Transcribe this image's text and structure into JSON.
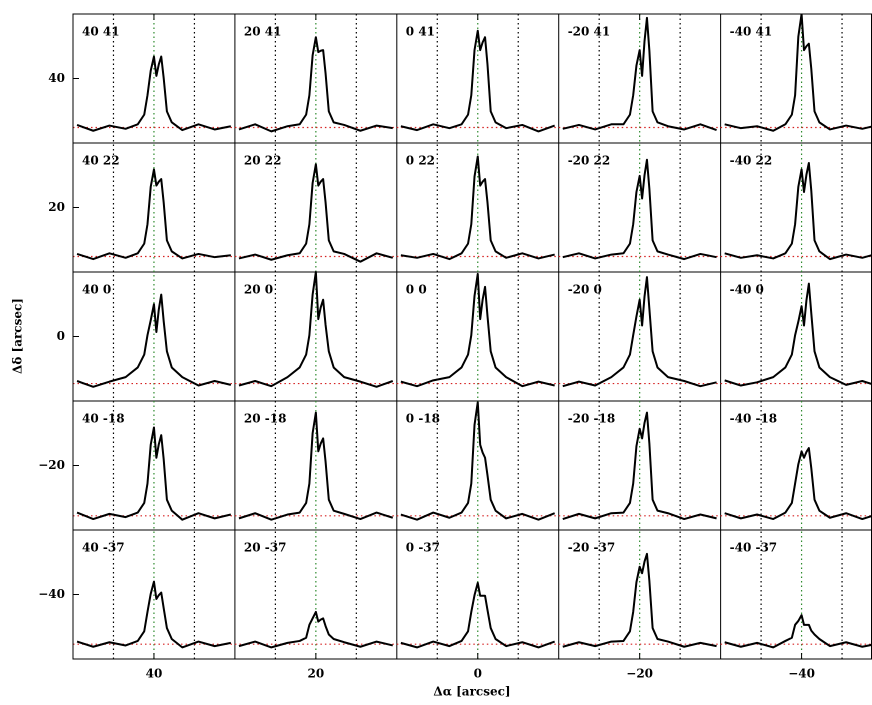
{
  "chart_data": {
    "type": "spectra-grid",
    "xlabel": "Δα [arcsec]",
    "ylabel": "Δδ [arcsec]",
    "xlim": [
      50,
      -48.7
    ],
    "ylim": [
      -50,
      50
    ],
    "xticks": [
      40,
      20,
      0,
      {
        "value": -20,
        "label": "−20"
      },
      {
        "value": -40,
        "label": "−40"
      }
    ],
    "yticks": [
      40,
      20,
      0,
      {
        "value": -20,
        "label": "−20"
      },
      {
        "value": -40,
        "label": "−40"
      }
    ],
    "line_color": "#000000",
    "center_color": "#2e8b2e",
    "marker_color": "#000000",
    "baseline_color": "#d62020",
    "columns": [
      {
        "center": 40,
        "lines": [
          45,
          35
        ],
        "x": [
          49.5,
          47.5,
          45.5,
          43.5,
          42,
          41.2,
          40.8,
          40.4,
          40,
          39.7,
          39.4,
          39.1,
          38.8,
          38.4,
          37.8,
          36.5,
          34.5,
          32.5,
          30.5
        ]
      },
      {
        "center": 20,
        "lines": [
          25,
          15
        ],
        "x": [
          29.5,
          27.5,
          25.5,
          23.5,
          22,
          21.2,
          20.8,
          20.4,
          20,
          19.7,
          19.4,
          19.1,
          18.8,
          18.4,
          17.8,
          16.5,
          14.5,
          12.5,
          10.5
        ]
      },
      {
        "center": 0,
        "lines": [
          5,
          -5
        ],
        "x": [
          9.5,
          7.5,
          5.5,
          3.5,
          2,
          1.2,
          0.8,
          0.4,
          0,
          -0.3,
          -0.6,
          -0.9,
          -1.2,
          -1.6,
          -2.2,
          -3.5,
          -5.5,
          -7.5,
          -9.5
        ]
      },
      {
        "center": -20,
        "lines": [
          -15,
          -25
        ],
        "x": [
          -10.5,
          -12.5,
          -14.5,
          -16.5,
          -18,
          -18.8,
          -19.2,
          -19.6,
          -20,
          -20.3,
          -20.6,
          -20.9,
          -21.2,
          -21.6,
          -22.2,
          -23.5,
          -25.5,
          -27.5,
          -29.5
        ]
      },
      {
        "center": -40,
        "lines": [
          -35,
          -45
        ],
        "x": [
          -30.5,
          -32.5,
          -34.5,
          -36.5,
          -38,
          -38.8,
          -39.2,
          -39.6,
          -40,
          -40.3,
          -40.6,
          -40.9,
          -41.2,
          -41.6,
          -42.2,
          -43.5,
          -45.5,
          -47.5,
          -49.5
        ]
      }
    ],
    "rows": [
      {
        "baseline": 32.4
      },
      {
        "baseline": 12.4
      },
      {
        "baseline": -7.3
      },
      {
        "baseline": -27.8
      },
      {
        "baseline": -47.7
      }
    ],
    "panels": [
      {
        "label": "40 41",
        "values": [
          32.8,
          31.9,
          32.7,
          32.2,
          32.9,
          34.4,
          37.4,
          41.2,
          43.4,
          40.4,
          42.2,
          43.4,
          40.1,
          34.9,
          33.2,
          32.0,
          32.9,
          32.1,
          32.6
        ]
      },
      {
        "label": "20 41",
        "values": [
          32.1,
          32.9,
          31.8,
          32.6,
          32.9,
          34.4,
          37.4,
          43.6,
          46.4,
          44.1,
          44.3,
          44.4,
          40.8,
          34.9,
          33.2,
          32.8,
          31.9,
          32.7,
          32.3
        ]
      },
      {
        "label": "0 41",
        "values": [
          32.6,
          32.0,
          32.9,
          32.3,
          32.9,
          34.4,
          37.4,
          44.4,
          47.4,
          44.4,
          45.6,
          46.4,
          42.2,
          34.9,
          33.2,
          32.3,
          32.8,
          31.8,
          32.7
        ]
      },
      {
        "label": "-20 41",
        "values": [
          32.2,
          32.8,
          32.1,
          32.9,
          32.9,
          34.4,
          37.4,
          42.0,
          44.4,
          40.4,
          45.8,
          49.4,
          44.3,
          34.9,
          33.2,
          32.6,
          32.1,
          32.9,
          32.0
        ]
      },
      {
        "label": "-40 41",
        "values": [
          32.9,
          32.3,
          32.6,
          31.9,
          32.9,
          34.4,
          37.4,
          46.5,
          50.0,
          44.4,
          45.0,
          45.4,
          41.5,
          34.9,
          33.2,
          32.1,
          32.7,
          32.2,
          32.8
        ]
      },
      {
        "label": "40 22",
        "values": [
          12.8,
          12.0,
          12.9,
          12.2,
          12.9,
          14.4,
          17.4,
          23.2,
          25.9,
          23.4,
          24.0,
          24.4,
          20.8,
          14.9,
          13.2,
          12.1,
          12.8,
          12.3,
          12.6
        ]
      },
      {
        "label": "20 22",
        "values": [
          12.1,
          12.7,
          11.9,
          12.6,
          12.9,
          14.4,
          17.4,
          23.8,
          26.7,
          23.4,
          24.0,
          24.4,
          20.8,
          14.9,
          13.2,
          12.8,
          11.6,
          12.9,
          12.2
        ]
      },
      {
        "label": "0 22",
        "values": [
          12.6,
          12.2,
          12.8,
          12.0,
          12.9,
          14.4,
          17.4,
          24.8,
          27.9,
          23.4,
          24.0,
          24.4,
          20.8,
          14.9,
          13.2,
          12.2,
          12.9,
          12.1,
          12.7
        ]
      },
      {
        "label": "-20 22",
        "values": [
          12.3,
          12.9,
          12.1,
          12.7,
          12.9,
          14.4,
          17.4,
          22.4,
          24.9,
          21.4,
          25.0,
          27.4,
          22.9,
          14.9,
          13.2,
          12.7,
          12.0,
          12.8,
          12.3
        ]
      },
      {
        "label": "-40 22",
        "values": [
          12.9,
          12.2,
          12.6,
          12.1,
          12.9,
          14.4,
          17.4,
          23.2,
          25.9,
          22.4,
          25.1,
          26.9,
          22.6,
          14.9,
          13.2,
          12.0,
          12.7,
          12.2,
          12.9
        ]
      },
      {
        "label": "40 0",
        "values": [
          -6.9,
          -7.8,
          -7.0,
          -6.3,
          -4.8,
          -2.8,
          0.2,
          2.5,
          5.0,
          0.7,
          4.2,
          6.5,
          2.4,
          -2.3,
          -4.8,
          -6.3,
          -7.6,
          -6.9,
          -7.5
        ]
      },
      {
        "label": "20 0",
        "values": [
          -7.6,
          -6.9,
          -7.7,
          -6.3,
          -4.8,
          -2.8,
          0.2,
          6.5,
          10.0,
          2.7,
          4.5,
          5.7,
          1.8,
          -2.3,
          -4.8,
          -6.3,
          -7.0,
          -7.8,
          -6.9
        ]
      },
      {
        "label": "0 0",
        "values": [
          -7.0,
          -7.7,
          -6.8,
          -6.3,
          -4.8,
          -2.8,
          0.2,
          6.3,
          9.7,
          2.7,
          5.7,
          7.7,
          3.2,
          -2.3,
          -4.8,
          -6.3,
          -7.7,
          -7.0,
          -7.6
        ]
      },
      {
        "label": "-20 0",
        "values": [
          -7.7,
          -7.0,
          -7.6,
          -6.3,
          -4.8,
          -2.8,
          0.2,
          3.1,
          5.7,
          1.7,
          6.2,
          9.2,
          4.3,
          -2.3,
          -4.8,
          -6.3,
          -6.9,
          -7.7,
          -7.1
        ]
      },
      {
        "label": "-40 0",
        "values": [
          -6.8,
          -7.6,
          -7.1,
          -6.3,
          -4.8,
          -2.8,
          0.2,
          2.3,
          4.7,
          1.7,
          5.6,
          8.2,
          3.6,
          -2.3,
          -4.8,
          -6.3,
          -7.5,
          -6.9,
          -7.7
        ]
      },
      {
        "label": "40 -18",
        "values": [
          -27.3,
          -28.3,
          -27.5,
          -28.0,
          -27.3,
          -25.8,
          -22.8,
          -16.8,
          -14.1,
          -18.8,
          -16.7,
          -15.3,
          -19.0,
          -25.3,
          -27.0,
          -28.4,
          -27.4,
          -28.2,
          -27.6
        ]
      },
      {
        "label": "20 -18",
        "values": [
          -28.2,
          -27.4,
          -28.4,
          -27.6,
          -27.3,
          -25.8,
          -22.8,
          -15.0,
          -11.8,
          -17.8,
          -16.6,
          -15.8,
          -19.4,
          -25.3,
          -27.0,
          -27.5,
          -28.3,
          -27.3,
          -28.1
        ]
      },
      {
        "label": "0 -18",
        "values": [
          -27.6,
          -28.4,
          -27.3,
          -28.1,
          -27.3,
          -25.8,
          -22.8,
          -13.7,
          -10.2,
          -16.8,
          -18.0,
          -18.8,
          -21.5,
          -25.3,
          -27.0,
          -28.2,
          -27.5,
          -28.4,
          -27.4
        ]
      },
      {
        "label": "-20 -18",
        "values": [
          -28.3,
          -27.5,
          -28.2,
          -27.4,
          -27.3,
          -25.8,
          -22.8,
          -17.0,
          -14.3,
          -15.8,
          -13.4,
          -11.8,
          -16.6,
          -25.3,
          -27.0,
          -27.4,
          -28.3,
          -27.6,
          -28.2
        ]
      },
      {
        "label": "-40 -18",
        "values": [
          -27.4,
          -28.2,
          -27.6,
          -28.3,
          -27.3,
          -25.8,
          -22.8,
          -19.8,
          -17.8,
          -18.8,
          -17.9,
          -17.3,
          -20.4,
          -25.3,
          -27.0,
          -28.1,
          -27.4,
          -28.3,
          -27.5
        ]
      },
      {
        "label": "40 -37",
        "values": [
          -47.3,
          -48.1,
          -47.4,
          -47.9,
          -47.2,
          -45.7,
          -42.7,
          -39.9,
          -38.0,
          -40.7,
          -40.1,
          -39.7,
          -42.1,
          -45.2,
          -46.9,
          -48.2,
          -47.3,
          -48.0,
          -47.5
        ]
      },
      {
        "label": "20 -37",
        "values": [
          -48.0,
          -47.3,
          -48.2,
          -47.5,
          -47.2,
          -46.7,
          -44.7,
          -43.7,
          -42.7,
          -44.2,
          -43.9,
          -43.7,
          -44.9,
          -46.2,
          -46.9,
          -47.4,
          -48.1,
          -47.3,
          -47.9
        ]
      },
      {
        "label": "0 -37",
        "values": [
          -47.5,
          -48.2,
          -47.3,
          -48.0,
          -47.2,
          -45.7,
          -42.7,
          -40.1,
          -38.2,
          -40.2,
          -40.2,
          -40.2,
          -42.4,
          -45.2,
          -46.9,
          -48.0,
          -47.4,
          -48.2,
          -47.3
        ]
      },
      {
        "label": "-20 -37",
        "values": [
          -48.1,
          -47.4,
          -48.0,
          -47.3,
          -47.2,
          -45.7,
          -42.7,
          -38.1,
          -35.7,
          -36.7,
          -34.9,
          -33.7,
          -37.9,
          -45.2,
          -46.9,
          -47.3,
          -48.1,
          -47.5,
          -48.0
        ]
      },
      {
        "label": "-40 -37",
        "values": [
          -47.4,
          -48.1,
          -47.5,
          -48.2,
          -47.2,
          -46.7,
          -44.7,
          -44.1,
          -43.2,
          -44.7,
          -44.7,
          -44.7,
          -45.6,
          -46.2,
          -46.9,
          -48.0,
          -47.4,
          -48.1,
          -47.6
        ]
      }
    ]
  }
}
